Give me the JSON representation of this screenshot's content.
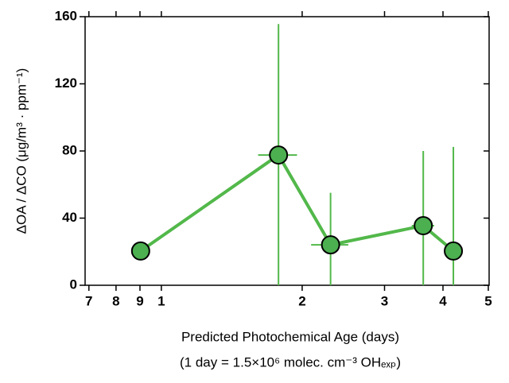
{
  "chart_data": {
    "type": "line",
    "x": [
      0.903,
      1.78,
      2.3,
      3.63,
      4.21
    ],
    "values": [
      20.4,
      77.6,
      24.1,
      35.5,
      20.4
    ],
    "yerr": [
      null,
      78,
      31,
      44.5,
      62
    ],
    "xerr": [
      null,
      0.17,
      0.21,
      0.2,
      null
    ],
    "color": "#52b84a",
    "marker_color": "#4caf50",
    "xscale": "log",
    "xlim": [
      0.687,
      5.02
    ],
    "xticks": [
      {
        "value": 0.7,
        "label": "7"
      },
      {
        "value": 0.8,
        "label": "8"
      },
      {
        "value": 0.9,
        "label": "9"
      },
      1,
      2,
      3,
      4,
      5
    ],
    "ylim": [
      0,
      160
    ],
    "yticks": [
      0,
      40,
      80,
      120,
      160
    ],
    "xlabel": "Predicted Photochemical Age (days)",
    "xlabel_note": "(1 day = 1.5×10⁶ molec. cm⁻³ OHₑₓₚ)",
    "ylabel": "ΔOA / ΔCO (μg/m³ · ppm⁻¹)"
  }
}
